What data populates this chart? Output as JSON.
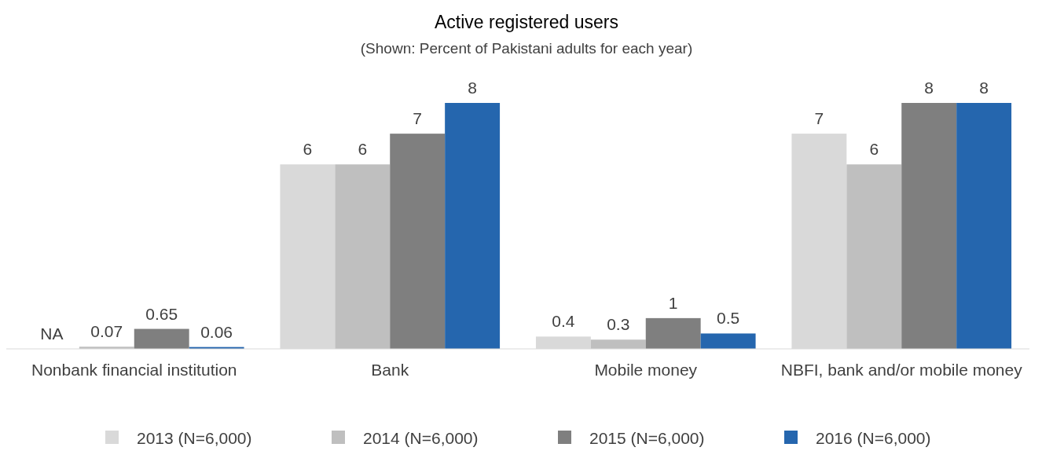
{
  "chart_data": {
    "type": "bar",
    "title": "Active registered users",
    "subtitle": "(Shown: Percent of Pakistani adults for each year)",
    "categories": [
      "Nonbank financial institution",
      "Bank",
      "Mobile money",
      "NBFI, bank and/or mobile money"
    ],
    "series": [
      {
        "name": "2013 (N=6,000)",
        "color": "#d9d9d9",
        "values": [
          null,
          6,
          0.4,
          7
        ],
        "value_labels": [
          "NA",
          "6",
          "0.4",
          "7"
        ]
      },
      {
        "name": "2014 (N=6,000)",
        "color": "#bfbfbf",
        "values": [
          0.07,
          6,
          0.3,
          6
        ],
        "value_labels": [
          "0.07",
          "6",
          "0.3",
          "6"
        ]
      },
      {
        "name": "2015 (N=6,000)",
        "color": "#7f7f7f",
        "values": [
          0.65,
          7,
          1,
          8
        ],
        "value_labels": [
          "0.65",
          "7",
          "1",
          "8"
        ]
      },
      {
        "name": "2016 (N=6,000)",
        "color": "#2566ae",
        "values": [
          0.06,
          8,
          0.5,
          8
        ],
        "value_labels": [
          "0.06",
          "8",
          "0.5",
          "8"
        ]
      }
    ],
    "legend": "bottom"
  }
}
